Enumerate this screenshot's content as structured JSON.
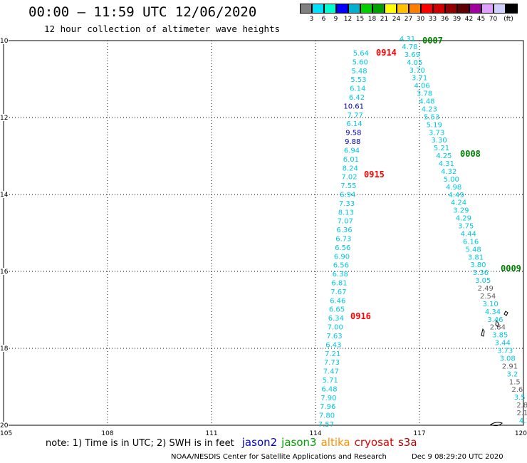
{
  "title": "00:00 – 11:59 UTC 12/06/2020",
  "subtitle": "12 hour collection of altimeter wave heights",
  "scale": {
    "colors": [
      "#808080",
      "#00e0ff",
      "#00ffd0",
      "#0000ff",
      "#00b0d0",
      "#00d000",
      "#00a000",
      "#ffff00",
      "#ffc000",
      "#ff8000",
      "#ff0000",
      "#d00000",
      "#900000",
      "#600000",
      "#a000a0",
      "#e0a0ff",
      "#d0d0ff",
      "#000000"
    ],
    "labels": [
      "3",
      "6",
      "9",
      "12",
      "15",
      "18",
      "21",
      "24",
      "27",
      "30",
      "33",
      "36",
      "39",
      "42",
      "45",
      "70",
      "(ft)"
    ]
  },
  "map": {
    "lon_labels": [
      "105",
      "108",
      "111",
      "114",
      "117",
      "120"
    ],
    "lat_labels": [
      "10",
      "12",
      "14",
      "16",
      "18",
      "20"
    ]
  },
  "tracks": [
    {
      "label": "0007",
      "color": "#008000"
    },
    {
      "label": "0008",
      "color": "#008000"
    },
    {
      "label": "0009",
      "color": "#008000"
    },
    {
      "label": "0914",
      "color": "#ff0000"
    },
    {
      "label": "0915",
      "color": "#ff0000"
    },
    {
      "label": "0916",
      "color": "#ff0000"
    }
  ],
  "left_pass": [
    {
      "v": "5.64",
      "c": "#00c8e0"
    },
    {
      "v": "5.60",
      "c": "#00c8e0"
    },
    {
      "v": "5.48",
      "c": "#00c8e0"
    },
    {
      "v": "5.53",
      "c": "#00c8e0"
    },
    {
      "v": "6.14",
      "c": "#00c8e0"
    },
    {
      "v": "6.42",
      "c": "#00c8e0"
    },
    {
      "v": "10.61",
      "c": "#0000c0"
    },
    {
      "v": "7.77",
      "c": "#00c8e0"
    },
    {
      "v": "6.14",
      "c": "#00c8e0"
    },
    {
      "v": "9.58",
      "c": "#0000c0"
    },
    {
      "v": "9.88",
      "c": "#0000c0"
    },
    {
      "v": "6.94",
      "c": "#00c8e0"
    },
    {
      "v": "6.01",
      "c": "#00c8e0"
    },
    {
      "v": "8.24",
      "c": "#00c8e0"
    },
    {
      "v": "7.02",
      "c": "#00c8e0"
    },
    {
      "v": "7.55",
      "c": "#00c8e0"
    },
    {
      "v": "6.94",
      "c": "#00c8e0"
    },
    {
      "v": "7.33",
      "c": "#00c8e0"
    },
    {
      "v": "8.13",
      "c": "#00c8e0"
    },
    {
      "v": "7.07",
      "c": "#00c8e0"
    },
    {
      "v": "6.36",
      "c": "#00c8e0"
    },
    {
      "v": "6.73",
      "c": "#00c8e0"
    },
    {
      "v": "6.56",
      "c": "#00c8e0"
    },
    {
      "v": "6.90",
      "c": "#00c8e0"
    },
    {
      "v": "6.56",
      "c": "#00c8e0"
    },
    {
      "v": "6.38",
      "c": "#00c8e0"
    },
    {
      "v": "6.81",
      "c": "#00c8e0"
    },
    {
      "v": "7.67",
      "c": "#00c8e0"
    },
    {
      "v": "6.46",
      "c": "#00c8e0"
    },
    {
      "v": "6.65",
      "c": "#00c8e0"
    },
    {
      "v": "6.34",
      "c": "#00c8e0"
    },
    {
      "v": "7.00",
      "c": "#00c8e0"
    },
    {
      "v": "7.63",
      "c": "#00c8e0"
    },
    {
      "v": "6.43",
      "c": "#00c8e0"
    },
    {
      "v": "7.21",
      "c": "#00c8e0"
    },
    {
      "v": "7.73",
      "c": "#00c8e0"
    },
    {
      "v": "7.47",
      "c": "#00c8e0"
    },
    {
      "v": "5.71",
      "c": "#00c8e0"
    },
    {
      "v": "6.48",
      "c": "#00c8e0"
    },
    {
      "v": "7.90",
      "c": "#00c8e0"
    },
    {
      "v": "7.96",
      "c": "#00c8e0"
    },
    {
      "v": "7.80",
      "c": "#00c8e0"
    },
    {
      "v": "7.57",
      "c": "#00c8e0"
    }
  ],
  "right_pass": [
    {
      "v": "4.31",
      "c": "#00c8e0"
    },
    {
      "v": "4.78",
      "c": "#00c8e0"
    },
    {
      "v": "3.69",
      "c": "#00c8e0"
    },
    {
      "v": "4.05",
      "c": "#00c8e0"
    },
    {
      "v": "3.70",
      "c": "#00c8e0"
    },
    {
      "v": "3.71",
      "c": "#00c8e0"
    },
    {
      "v": "4.06",
      "c": "#00c8e0"
    },
    {
      "v": "3.78",
      "c": "#00c8e0"
    },
    {
      "v": "4.48",
      "c": "#00c8e0"
    },
    {
      "v": "4.23",
      "c": "#00c8e0"
    },
    {
      "v": "5.53",
      "c": "#00c8e0"
    },
    {
      "v": "5.19",
      "c": "#00c8e0"
    },
    {
      "v": "3.73",
      "c": "#00c8e0"
    },
    {
      "v": "3.30",
      "c": "#00c8e0"
    },
    {
      "v": "5.21",
      "c": "#00c8e0"
    },
    {
      "v": "4.25",
      "c": "#00c8e0"
    },
    {
      "v": "4.31",
      "c": "#00c8e0"
    },
    {
      "v": "4.32",
      "c": "#00c8e0"
    },
    {
      "v": "5.00",
      "c": "#00c8e0"
    },
    {
      "v": "4.98",
      "c": "#00c8e0"
    },
    {
      "v": "4.49",
      "c": "#00c8e0"
    },
    {
      "v": "4.24",
      "c": "#00c8e0"
    },
    {
      "v": "3.29",
      "c": "#00c8e0"
    },
    {
      "v": "4.29",
      "c": "#00c8e0"
    },
    {
      "v": "3.75",
      "c": "#00c8e0"
    },
    {
      "v": "4.44",
      "c": "#00c8e0"
    },
    {
      "v": "6.16",
      "c": "#00c8e0"
    },
    {
      "v": "5.48",
      "c": "#00c8e0"
    },
    {
      "v": "3.81",
      "c": "#00c8e0"
    },
    {
      "v": "3.80",
      "c": "#00c8e0"
    },
    {
      "v": "3.36",
      "c": "#00c8e0"
    },
    {
      "v": "3.05",
      "c": "#00c8e0"
    },
    {
      "v": "2.49",
      "c": "#606060"
    },
    {
      "v": "2.54",
      "c": "#606060"
    },
    {
      "v": "3.10",
      "c": "#00c8e0"
    },
    {
      "v": "4.34",
      "c": "#00c8e0"
    },
    {
      "v": "3.46",
      "c": "#00c8e0"
    },
    {
      "v": "2.84",
      "c": "#606060"
    },
    {
      "v": "3.85",
      "c": "#00c8e0"
    },
    {
      "v": "3.44",
      "c": "#00c8e0"
    },
    {
      "v": "3.73",
      "c": "#00c8e0"
    },
    {
      "v": "3.08",
      "c": "#00c8e0"
    },
    {
      "v": "2.91",
      "c": "#606060"
    },
    {
      "v": "3.2",
      "c": "#00c8e0"
    },
    {
      "v": "1.5",
      "c": "#606060"
    },
    {
      "v": "2.6",
      "c": "#606060"
    },
    {
      "v": "3.5",
      "c": "#00c8e0"
    },
    {
      "v": "2.8",
      "c": "#606060"
    },
    {
      "v": "2.16",
      "c": "#606060"
    },
    {
      "v": "4.16",
      "c": "#00c8e0"
    }
  ],
  "legend": {
    "note": "note: 1) Time is in UTC; 2) SWH is in feet",
    "satellites": [
      {
        "name": "jason2",
        "color": "#0000d0"
      },
      {
        "name": "jason3",
        "color": "#00a000"
      },
      {
        "name": "altika",
        "color": "#ff9000"
      },
      {
        "name": "cryosat",
        "color": "#e00000"
      },
      {
        "name": "s3a",
        "color": "#b00000"
      }
    ]
  },
  "footer": "NOAA/NESDIS Center for Satellite Applications and Research",
  "footer_timestamp": "Dec  9 08:29:20 UTC 2020"
}
